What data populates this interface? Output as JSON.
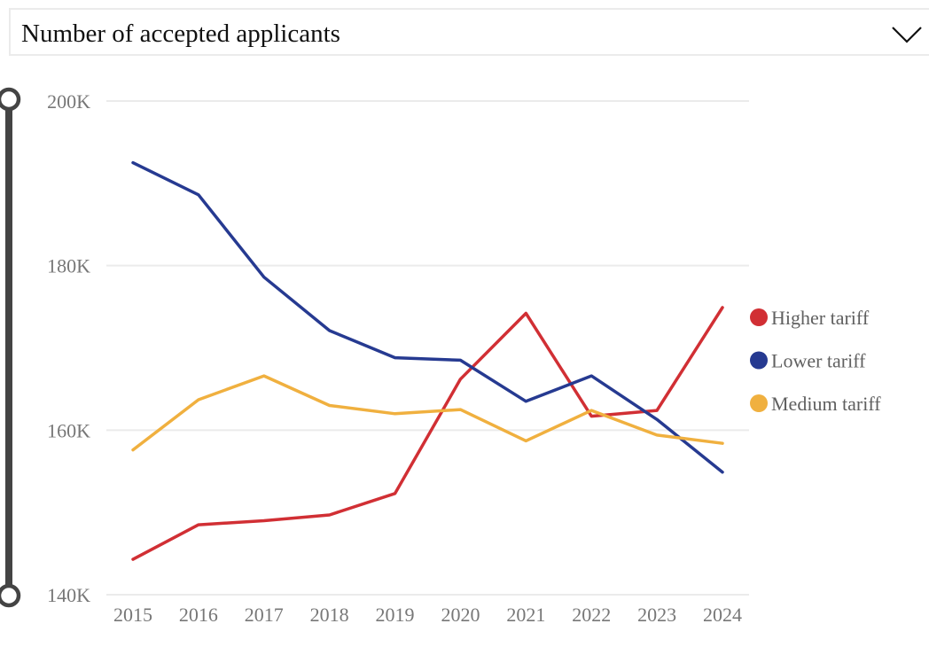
{
  "selector": {
    "selected": "Number of accepted applicants",
    "icon": "chevron-down-icon"
  },
  "range_slider": {
    "upper_value": "200K",
    "lower_value": "140K"
  },
  "chart_data": {
    "type": "line",
    "title": "Number of accepted applicants",
    "xlabel": "",
    "ylabel": "",
    "x": [
      "2015",
      "2016",
      "2017",
      "2018",
      "2019",
      "2020",
      "2021",
      "2022",
      "2023",
      "2024"
    ],
    "ylim": [
      140000,
      200000
    ],
    "yticks": [
      140000,
      160000,
      180000,
      200000
    ],
    "ytick_labels": [
      "140K",
      "160K",
      "180K",
      "200K"
    ],
    "grid": true,
    "legend_position": "right",
    "series": [
      {
        "name": "Higher tariff",
        "color": "#d12f34",
        "values": [
          144300,
          148500,
          149000,
          149700,
          152300,
          166200,
          174200,
          161700,
          162400,
          174900
        ]
      },
      {
        "name": "Lower tariff",
        "color": "#263a91",
        "values": [
          192500,
          188600,
          178600,
          172100,
          168800,
          168500,
          163500,
          166600,
          161300,
          154900
        ]
      },
      {
        "name": "Medium tariff",
        "color": "#f0b03f",
        "values": [
          157600,
          163700,
          166600,
          163000,
          162000,
          162500,
          158700,
          162400,
          159400,
          158400
        ]
      }
    ]
  }
}
